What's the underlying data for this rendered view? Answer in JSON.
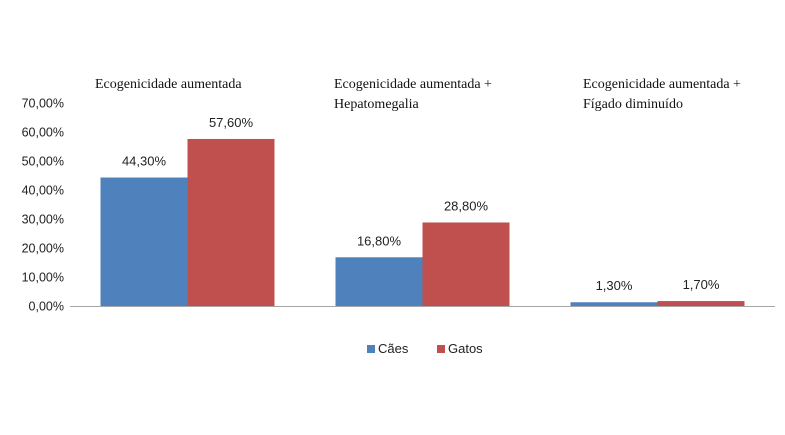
{
  "chart_data": {
    "type": "bar",
    "categories": [
      [
        "Ecogenicidade aumentada"
      ],
      [
        "Ecogenicidade aumentada +",
        "Hepatomegalia"
      ],
      [
        "Ecogenicidade aumentada +",
        "Fígado diminuído"
      ]
    ],
    "series": [
      {
        "name": "Cães",
        "color": "#4f81bd",
        "values": [
          44.3,
          16.8,
          1.3
        ],
        "labels": [
          "44,30%",
          "16,80%",
          "1,30%"
        ]
      },
      {
        "name": "Gatos",
        "color": "#c0504d",
        "values": [
          57.6,
          28.8,
          1.7
        ],
        "labels": [
          "57,60%",
          "28,80%",
          "1,70%"
        ]
      }
    ],
    "ylim": [
      0,
      70
    ],
    "yticks": [
      "0,00%",
      "10,00%",
      "20,00%",
      "30,00%",
      "40,00%",
      "50,00%",
      "60,00%",
      "70,00%"
    ],
    "grid": false,
    "legend_position": "bottom-center",
    "xlabel": "",
    "ylabel": ""
  }
}
